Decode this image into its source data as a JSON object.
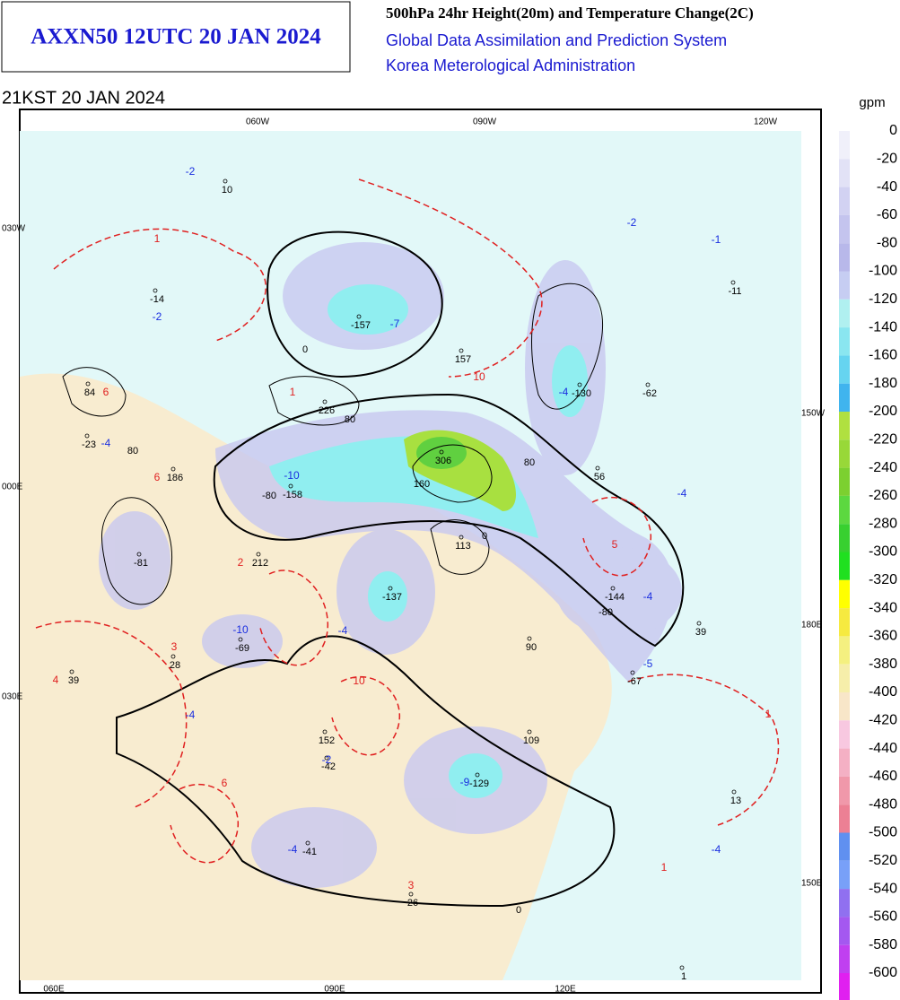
{
  "header": {
    "title": "AXXN50 12UTC 20 JAN 2024",
    "product": "500hPa 24hr Height(20m) and Temperature Change(2C)",
    "system": "Global Data Assimilation and Prediction System",
    "agency": "Korea Meterological Administration"
  },
  "valid_time": "21KST 20 JAN 2024",
  "colorbar": {
    "unit": "gpm",
    "levels": [
      0,
      -20,
      -40,
      -60,
      -80,
      -100,
      -120,
      -140,
      -160,
      -180,
      -200,
      -220,
      -240,
      -260,
      -280,
      -300,
      -320,
      -340,
      -360,
      -380,
      -400,
      -420,
      -440,
      -460,
      -480,
      -500,
      -520,
      -540,
      -560,
      -580,
      -600
    ],
    "colors": [
      "#f0f0fa",
      "#e2e2f6",
      "#d2d2f2",
      "#c4c4ee",
      "#b8b8ea",
      "#c6cdf2",
      "#b0f0f0",
      "#8ae6f0",
      "#66d4f0",
      "#40b4ee",
      "#b0e040",
      "#98d838",
      "#7cd030",
      "#5cd840",
      "#38d030",
      "#20e020",
      "#ffff00",
      "#f6ea40",
      "#f4f080",
      "#f6eeaa",
      "#f8e6c8",
      "#f8c8e0",
      "#f4b0c4",
      "#f098aa",
      "#ec8094",
      "#6090f0",
      "#78a0f8",
      "#9070f0",
      "#a458f0",
      "#c040f0",
      "#e020f0"
    ]
  },
  "grid_labels": [
    "060W",
    "090W",
    "120W",
    "030W",
    "000E",
    "030E",
    "150W",
    "180E",
    "150E",
    "060E",
    "090E",
    "120E"
  ],
  "contour_labels": [
    "0",
    "80",
    "160",
    "80",
    "-80",
    "0",
    "-80",
    "80",
    "0"
  ],
  "height_change": [
    10,
    -14,
    84,
    -23,
    186,
    -81,
    226,
    -157,
    157,
    306,
    -158,
    212,
    113,
    -137,
    -130,
    -62,
    56,
    -11,
    -144,
    39,
    90,
    -69,
    28,
    39,
    -67,
    152,
    109,
    -129,
    -42,
    13,
    -41,
    26,
    1
  ],
  "temp_cold": [
    -2,
    -2,
    -1,
    -2,
    -7,
    -4,
    -10,
    -4,
    -4,
    -4,
    -10,
    -4,
    -5,
    -4,
    -9,
    -4,
    -4,
    -2
  ],
  "temp_warm": [
    1,
    6,
    1,
    10,
    6,
    2,
    5,
    3,
    4,
    10,
    1,
    6,
    1,
    3
  ]
}
